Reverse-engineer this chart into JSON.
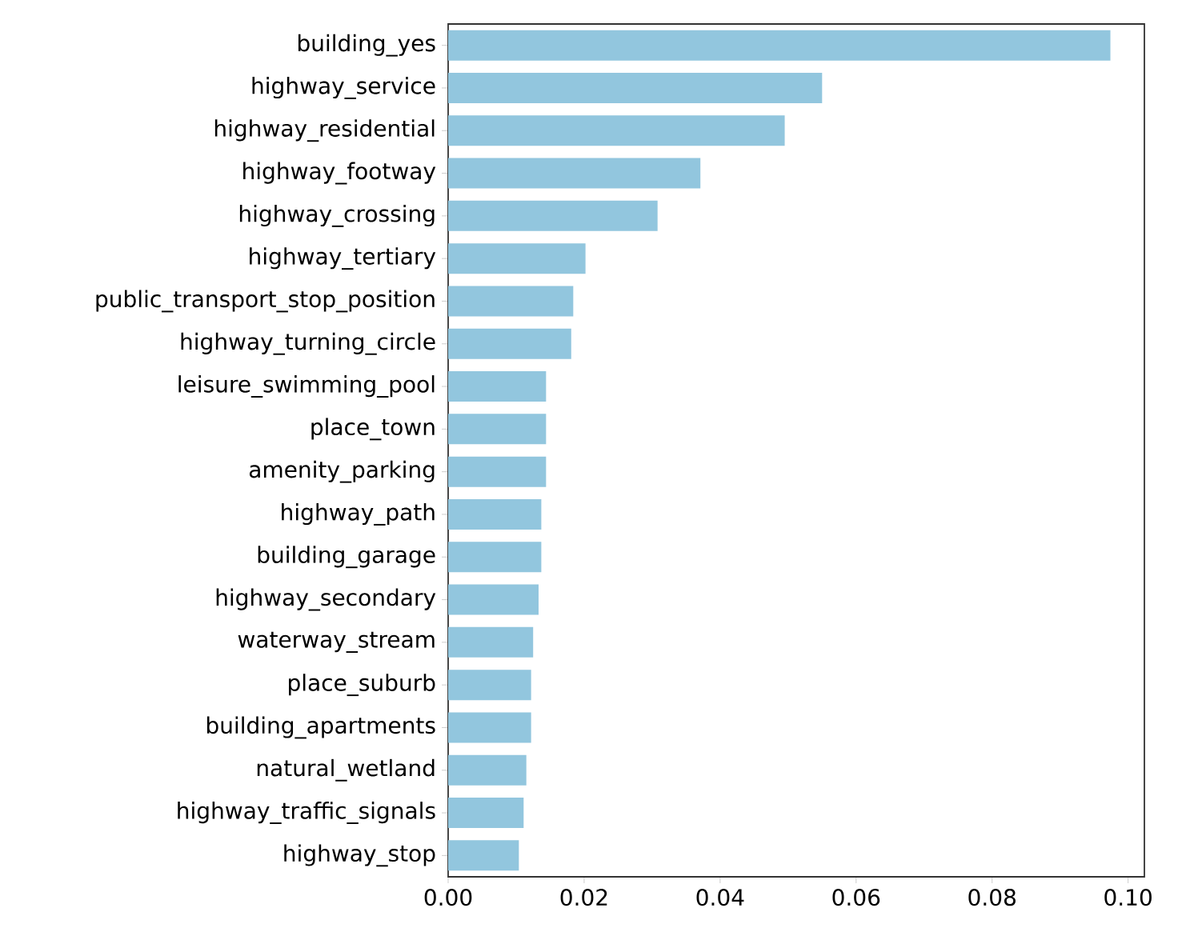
{
  "chart_data": {
    "type": "bar",
    "orientation": "horizontal",
    "color": "#92c6de",
    "categories": [
      "building_yes",
      "highway_service",
      "highway_residential",
      "highway_footway",
      "highway_crossing",
      "highway_tertiary",
      "public_transport_stop_position",
      "highway_turning_circle",
      "leisure_swimming_pool",
      "place_town",
      "amenity_parking",
      "highway_path",
      "building_garage",
      "highway_secondary",
      "waterway_stream",
      "place_suburb",
      "building_apartments",
      "natural_wetland",
      "highway_traffic_signals",
      "highway_stop"
    ],
    "values": [
      0.0974,
      0.055,
      0.0495,
      0.0371,
      0.0308,
      0.0202,
      0.0184,
      0.0181,
      0.0144,
      0.0144,
      0.0144,
      0.0137,
      0.0137,
      0.0133,
      0.0125,
      0.0122,
      0.0122,
      0.0115,
      0.0111,
      0.0104
    ],
    "xlim": [
      0,
      0.1024
    ],
    "xticks": [
      {
        "value": 0,
        "label": "0.00"
      },
      {
        "value": 0.02,
        "label": "0.02"
      },
      {
        "value": 0.04,
        "label": "0.04"
      },
      {
        "value": 0.06,
        "label": "0.06"
      },
      {
        "value": 0.08,
        "label": "0.08"
      },
      {
        "value": 0.1,
        "label": "0.10"
      }
    ],
    "grid": false
  }
}
